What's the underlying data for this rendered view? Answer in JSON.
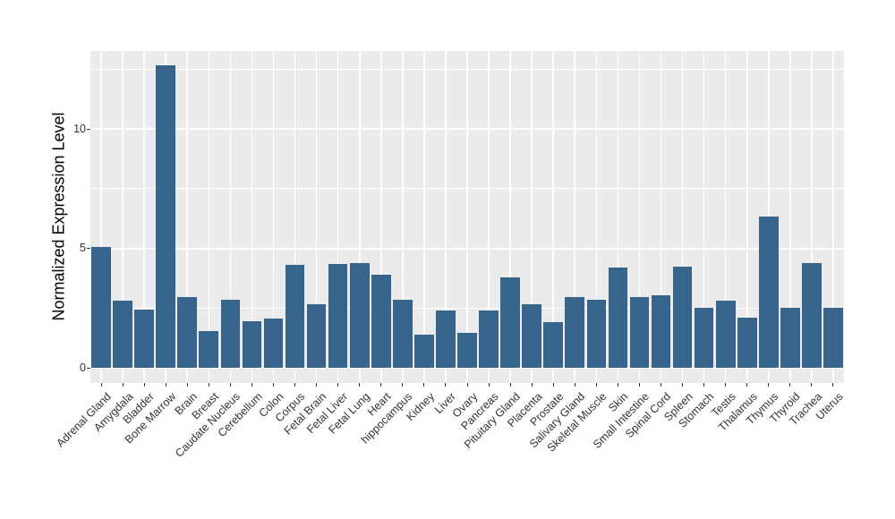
{
  "chart_data": {
    "type": "bar",
    "title": "",
    "xlabel": "",
    "ylabel": "Normalized Expression Level",
    "categories": [
      "Adrenal Gland",
      "Amygdala",
      "Bladder",
      "Bone Marrow",
      "Brain",
      "Breast",
      "Caudate Nucleus",
      "Cerebellum",
      "Colon",
      "Corpus",
      "Fetal Brain",
      "Fetal Liver",
      "Fetal Lung",
      "Heart",
      "hippocampus",
      "Kidney",
      "Liver",
      "Ovary",
      "Pancreas",
      "Pituitary Gland",
      "Placenta",
      "Prostate",
      "Salivary Gland",
      "Skeletal Muscle",
      "Skin",
      "Small Intestine",
      "Spinal Cord",
      "Spleen",
      "Stomach",
      "Testis",
      "Thalamus",
      "Thymus",
      "Thyroid",
      "Trachea",
      "Uterus"
    ],
    "values": [
      5.05,
      2.8,
      2.45,
      12.65,
      2.95,
      1.55,
      2.85,
      1.95,
      2.05,
      4.3,
      2.65,
      4.35,
      4.4,
      3.9,
      2.85,
      1.4,
      2.4,
      1.45,
      2.4,
      3.8,
      2.65,
      1.9,
      2.95,
      2.85,
      4.2,
      2.95,
      3.05,
      4.25,
      2.5,
      2.8,
      2.1,
      6.35,
      2.5,
      4.4,
      2.5
    ],
    "ylim": [
      0,
      12.65
    ],
    "y_major_ticks": [
      0,
      5,
      10
    ],
    "y_minor_ticks": [
      2.5,
      7.5,
      12.5
    ],
    "x_tick_rotation_deg": 45,
    "grid": "on",
    "legend": "none",
    "colors": {
      "bar_fill": "#36648a",
      "panel_background": "#ebebeb",
      "grid_major": "#ffffff",
      "grid_minor": "#ffffff",
      "axis_text": "#333333",
      "axis_title": "#000000",
      "tick_mark": "#333333",
      "figure_background": "#ffffff"
    }
  }
}
